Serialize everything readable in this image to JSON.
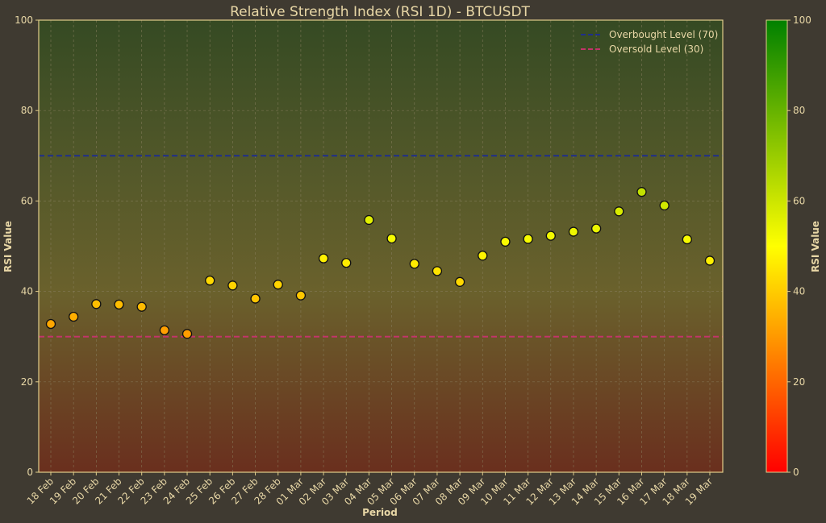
{
  "chart_data": {
    "type": "scatter",
    "title": "Relative Strength Index (RSI 1D) - BTCUSDT",
    "xlabel": "Period",
    "ylabel": "RSI Value",
    "ylim": [
      0,
      100
    ],
    "yticks": [
      0,
      20,
      40,
      60,
      80,
      100
    ],
    "grid": true,
    "legend_position": "top-right",
    "categories": [
      "18 Feb",
      "19 Feb",
      "20 Feb",
      "21 Feb",
      "22 Feb",
      "23 Feb",
      "24 Feb",
      "25 Feb",
      "26 Feb",
      "27 Feb",
      "28 Feb",
      "01 Mar",
      "02 Mar",
      "03 Mar",
      "04 Mar",
      "05 Mar",
      "06 Mar",
      "07 Mar",
      "08 Mar",
      "09 Mar",
      "10 Mar",
      "11 Mar",
      "12 Mar",
      "13 Mar",
      "14 Mar",
      "15 Mar",
      "16 Mar",
      "17 Mar",
      "18 Mar",
      "19 Mar"
    ],
    "values": [
      32.8,
      34.4,
      37.2,
      37.1,
      36.6,
      31.4,
      30.6,
      42.4,
      41.3,
      38.4,
      41.5,
      39.1,
      47.3,
      46.3,
      55.8,
      51.7,
      46.1,
      44.5,
      42.1,
      47.9,
      51.0,
      51.6,
      52.3,
      53.2,
      53.9,
      57.7,
      62.0,
      59.0,
      51.5,
      46.8
    ],
    "reference_lines": [
      {
        "name": "Overbought Level (70)",
        "value": 70,
        "color": "#1f2e8c",
        "style": "dashed"
      },
      {
        "name": "Oversold Level (30)",
        "value": 30,
        "color": "#c2346a",
        "style": "dashed"
      }
    ],
    "colorbar": {
      "label": "RSI Value",
      "range": [
        0,
        100
      ],
      "ticks": [
        0,
        20,
        40,
        60,
        80,
        100
      ],
      "colormap": [
        "#ff0000",
        "#ffff00",
        "#008000"
      ]
    }
  },
  "colors": {
    "background": "#3f3a31",
    "text": "#e8d7a6",
    "axes_frame": "#e2cd8a",
    "grid": "#8a8060",
    "marker_edge": "#111111"
  }
}
